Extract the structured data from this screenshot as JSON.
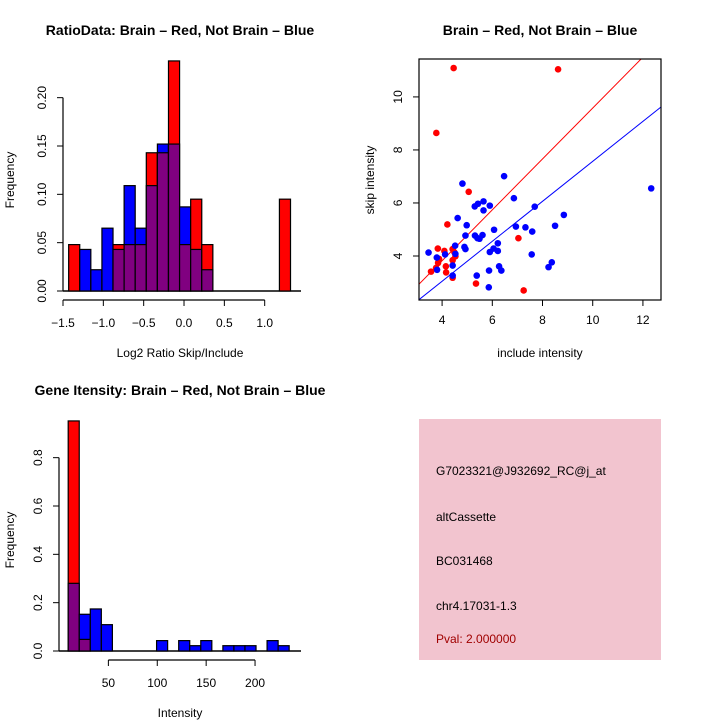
{
  "colors": {
    "brain": "#ff0000",
    "not_brain": "#0000ff",
    "overlap": "#800080",
    "panel_bg": "#f2c4cf",
    "pval": "#a00000"
  },
  "chart_data": [
    {
      "type": "bar",
      "subtype": "overlaid-histogram",
      "title": "RatioData: Brain – Red, Not Brain – Blue",
      "xlabel": "Log2 Ratio Skip/Include",
      "ylabel": "Frequency",
      "xlim": [
        -1.5,
        1.45
      ],
      "ylim": [
        0,
        0.24
      ],
      "xticks": [
        -1.5,
        -1.0,
        -0.5,
        0.0,
        0.5,
        1.0
      ],
      "xtick_labels": [
        "−1.5",
        "−1.0",
        "−0.5",
        "0.0",
        "0.5",
        "1.0"
      ],
      "yticks": [
        0,
        0.05,
        0.1,
        0.15,
        0.2
      ],
      "ytick_labels": [
        "0.00",
        "0.05",
        "0.10",
        "0.15",
        "0.20"
      ],
      "bin_start": -1.43,
      "bin_width": 0.1375,
      "series": [
        {
          "name": "Brain",
          "color": "red",
          "values": [
            0.048,
            0,
            0,
            0,
            0.048,
            0.048,
            0.048,
            0.143,
            0.143,
            0.238,
            0.048,
            0.095,
            0.048,
            0,
            0,
            0,
            0,
            0,
            0,
            0.095
          ]
        },
        {
          "name": "Not Brain",
          "color": "blue",
          "values": [
            0,
            0.043,
            0.022,
            0.065,
            0.043,
            0.109,
            0.065,
            0.109,
            0.152,
            0.152,
            0.087,
            0.043,
            0.022,
            0,
            0,
            0,
            0,
            0,
            0,
            0
          ]
        }
      ]
    },
    {
      "type": "scatter",
      "title": "Brain – Red, Not Brain – Blue",
      "xlabel": "include intensity",
      "ylabel": "skip intensity",
      "xlim": [
        3.08,
        12.72
      ],
      "ylim": [
        2.34,
        11.43
      ],
      "xticks": [
        4,
        6,
        8,
        10,
        12
      ],
      "yticks": [
        4,
        6,
        8,
        10
      ],
      "series": [
        {
          "name": "Brain",
          "color": "red",
          "points": [
            [
              4.46,
              11.09
            ],
            [
              8.62,
              11.04
            ],
            [
              3.77,
              8.64
            ],
            [
              5.06,
              6.42
            ],
            [
              4.21,
              5.19
            ],
            [
              7.04,
              4.67
            ],
            [
              5.35,
              2.96
            ],
            [
              7.25,
              2.7
            ],
            [
              3.56,
              3.41
            ],
            [
              3.83,
              4.28
            ],
            [
              4.09,
              4.19
            ],
            [
              3.88,
              3.89
            ],
            [
              4.15,
              3.61
            ],
            [
              4.16,
              3.38
            ],
            [
              3.84,
              3.74
            ],
            [
              4.42,
              3.84
            ],
            [
              4.42,
              4.26
            ],
            [
              4.49,
              4.14
            ],
            [
              4.42,
              3.18
            ],
            [
              3.76,
              3.55
            ],
            [
              4.53,
              3.99
            ]
          ],
          "fit": {
            "slope": 0.96,
            "intercept": -0.02
          }
        },
        {
          "name": "Not Brain",
          "color": "blue",
          "points": [
            [
              3.46,
              4.13
            ],
            [
              3.79,
              3.94
            ],
            [
              3.8,
              3.48
            ],
            [
              4.12,
              4.06
            ],
            [
              4.42,
              3.64
            ],
            [
              4.42,
              3.26
            ],
            [
              4.52,
              4.39
            ],
            [
              4.53,
              4.08
            ],
            [
              4.62,
              5.43
            ],
            [
              4.81,
              6.73
            ],
            [
              4.89,
              4.34
            ],
            [
              4.93,
              4.26
            ],
            [
              4.93,
              4.77
            ],
            [
              4.98,
              5.16
            ],
            [
              5.3,
              5.87
            ],
            [
              5.43,
              5.97
            ],
            [
              5.65,
              6.06
            ],
            [
              5.65,
              5.72
            ],
            [
              5.9,
              5.9
            ],
            [
              5.31,
              4.77
            ],
            [
              5.41,
              4.67
            ],
            [
              5.61,
              4.79
            ],
            [
              5.49,
              4.65
            ],
            [
              5.38,
              3.26
            ],
            [
              5.86,
              2.82
            ],
            [
              5.87,
              3.45
            ],
            [
              5.9,
              4.15
            ],
            [
              6.07,
              4.99
            ],
            [
              6.05,
              4.28
            ],
            [
              6.22,
              4.19
            ],
            [
              6.22,
              4.48
            ],
            [
              6.27,
              3.61
            ],
            [
              6.36,
              3.45
            ],
            [
              6.47,
              7.01
            ],
            [
              6.86,
              6.18
            ],
            [
              6.94,
              5.11
            ],
            [
              7.32,
              5.08
            ],
            [
              7.59,
              4.92
            ],
            [
              7.57,
              4.06
            ],
            [
              7.69,
              5.86
            ],
            [
              8.5,
              5.14
            ],
            [
              8.85,
              5.55
            ],
            [
              8.24,
              3.58
            ],
            [
              8.37,
              3.76
            ],
            [
              12.33,
              6.55
            ]
          ],
          "fit": {
            "slope": 0.754,
            "intercept": 0.03
          }
        }
      ]
    },
    {
      "type": "bar",
      "subtype": "overlaid-histogram",
      "title": "Gene Itensity: Brain – Red, Not Brain – Blue",
      "xlabel": "Intensity",
      "ylabel": "Frequency",
      "xlim": [
        -0.5,
        247
      ],
      "ylim": [
        0,
        0.96
      ],
      "xticks": [
        50,
        100,
        150,
        200
      ],
      "xtick_labels": [
        "50",
        "100",
        "150",
        "200"
      ],
      "yticks": [
        0,
        0.2,
        0.4,
        0.6,
        0.8
      ],
      "ytick_labels": [
        "0.0",
        "0.2",
        "0.4",
        "0.6",
        "0.8"
      ],
      "bin_start": 8.9,
      "bin_width": 11.3,
      "series": [
        {
          "name": "Brain",
          "color": "red",
          "values": [
            0.952,
            0.048,
            0,
            0,
            0,
            0,
            0,
            0,
            0,
            0,
            0,
            0,
            0,
            0,
            0,
            0,
            0,
            0,
            0,
            0
          ]
        },
        {
          "name": "Not Brain",
          "color": "blue",
          "values": [
            0.28,
            0.152,
            0.174,
            0.109,
            0,
            0,
            0,
            0,
            0.043,
            0,
            0.043,
            0.022,
            0.043,
            0,
            0.022,
            0.022,
            0.022,
            0,
            0.043,
            0.022
          ]
        }
      ]
    }
  ],
  "info_panel": {
    "probe_id": "G7023321@J932692_RC@j_at",
    "event_type": "altCassette",
    "accession": "BC031468",
    "location": "chr4.17031-1.3",
    "pval": "Pval: 2.000000"
  }
}
